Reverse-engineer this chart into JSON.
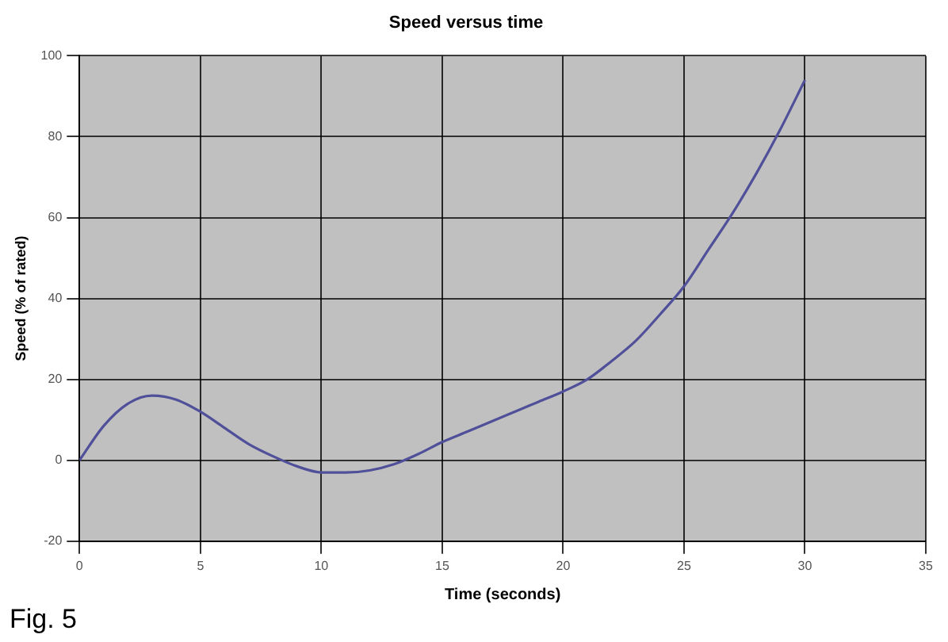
{
  "chart_data": {
    "type": "line",
    "title": "Speed versus time",
    "xlabel": "Time (seconds)",
    "ylabel": "Speed (% of rated)",
    "annotations": [
      "Fig. 5"
    ],
    "x": [
      0,
      1,
      2,
      3,
      4,
      5,
      6,
      7,
      8,
      9,
      10,
      11,
      12,
      13,
      14,
      15,
      16,
      17,
      18,
      19,
      20,
      21,
      22,
      23,
      24,
      25,
      26,
      27,
      28,
      29,
      30
    ],
    "series": [
      {
        "color": "#50509a",
        "values": [
          0,
          8.5,
          14,
          16,
          15,
          12,
          8,
          4,
          1,
          -1.5,
          -3,
          -3,
          -2.5,
          -1,
          1.5,
          4.5,
          7,
          9.5,
          12,
          14.5,
          17,
          20,
          24.5,
          29.5,
          36,
          43,
          52,
          61,
          71,
          82,
          94
        ]
      }
    ],
    "xlim": [
      0,
      35
    ],
    "xticks": [
      0,
      5,
      10,
      15,
      20,
      25,
      30,
      35
    ],
    "ylim": [
      -20,
      100
    ],
    "yticks": [
      -20,
      0,
      20,
      40,
      60,
      80,
      100
    ],
    "grid": true,
    "legend": false,
    "marker": "none",
    "line_style": "solid"
  }
}
